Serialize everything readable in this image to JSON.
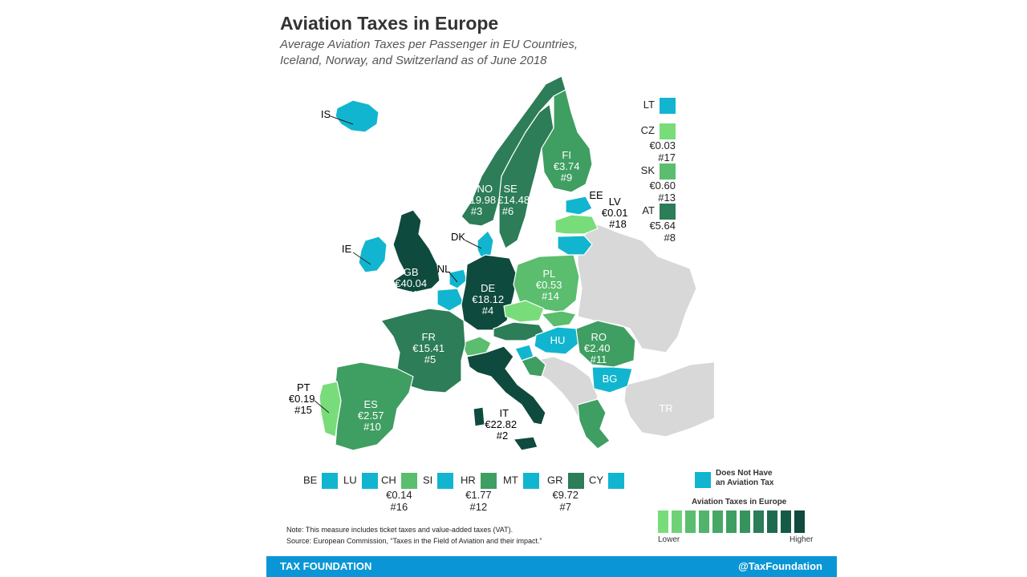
{
  "header": {
    "title": "Aviation Taxes in Europe",
    "subtitle_line1": "Average Aviation Taxes per Passenger in EU Countries,",
    "subtitle_line2": "Iceland, Norway, and Switzerland as of June 2018"
  },
  "colors": {
    "no_tax": "#12b5cf",
    "non_eu": "#d8d8d8",
    "shade_1": "#79dc7b",
    "shade_2": "#5bbd6e",
    "shade_3": "#3f9e62",
    "shade_4": "#2c7d58",
    "shade_5": "#0e4a3d",
    "footer": "#0a96d6"
  },
  "map_labels": [
    {
      "key": "is",
      "code": "IS",
      "value": "",
      "rank": ""
    },
    {
      "key": "ie",
      "code": "IE",
      "value": "",
      "rank": ""
    },
    {
      "key": "gb",
      "code": "GB",
      "value": "€40.04",
      "rank": "#1"
    },
    {
      "key": "nl",
      "code": "NL",
      "value": "",
      "rank": ""
    },
    {
      "key": "dk",
      "code": "DK",
      "value": "",
      "rank": ""
    },
    {
      "key": "no",
      "code": "NO",
      "value": "€19.98",
      "rank": "#3"
    },
    {
      "key": "se",
      "code": "SE",
      "value": "€14.48",
      "rank": "#6"
    },
    {
      "key": "fi",
      "code": "FI",
      "value": "€3.74",
      "rank": "#9"
    },
    {
      "key": "ee",
      "code": "EE",
      "value": "",
      "rank": ""
    },
    {
      "key": "lv",
      "code": "LV",
      "value": "€0.01",
      "rank": "#18"
    },
    {
      "key": "de",
      "code": "DE",
      "value": "€18.12",
      "rank": "#4"
    },
    {
      "key": "pl",
      "code": "PL",
      "value": "€0.53",
      "rank": "#14"
    },
    {
      "key": "fr",
      "code": "FR",
      "value": "€15.41",
      "rank": "#5"
    },
    {
      "key": "hu",
      "code": "HU",
      "value": "",
      "rank": ""
    },
    {
      "key": "ro",
      "code": "RO",
      "value": "€2.40",
      "rank": "#11"
    },
    {
      "key": "bg",
      "code": "BG",
      "value": "",
      "rank": ""
    },
    {
      "key": "pt",
      "code": "PT",
      "value": "€0.19",
      "rank": "#15"
    },
    {
      "key": "es",
      "code": "ES",
      "value": "€2.57",
      "rank": "#10"
    },
    {
      "key": "it",
      "code": "IT",
      "value": "€22.82",
      "rank": "#2"
    },
    {
      "key": "tr",
      "code": "TR",
      "value": "",
      "rank": ""
    }
  ],
  "side_legend": [
    {
      "code": "LT",
      "value": "",
      "rank": ""
    },
    {
      "code": "CZ",
      "value": "€0.03",
      "rank": "#17"
    },
    {
      "code": "SK",
      "value": "€0.60",
      "rank": "#13"
    },
    {
      "code": "AT",
      "value": "€5.64",
      "rank": "#8"
    }
  ],
  "bottom_legend": [
    {
      "code": "BE",
      "value": "",
      "rank": ""
    },
    {
      "code": "LU",
      "value": "",
      "rank": ""
    },
    {
      "code": "CH",
      "value": "€0.14",
      "rank": "#16"
    },
    {
      "code": "SI",
      "value": "",
      "rank": ""
    },
    {
      "code": "HR",
      "value": "€1.77",
      "rank": "#12"
    },
    {
      "code": "MT",
      "value": "",
      "rank": ""
    },
    {
      "code": "GR",
      "value": "€9.72",
      "rank": "#7"
    },
    {
      "code": "CY",
      "value": "",
      "rank": ""
    }
  ],
  "legend": {
    "no_tax_label_line1": "Does Not Have",
    "no_tax_label_line2": "an Aviation Tax",
    "scale_title": "Aviation Taxes in Europe",
    "scale_low": "Lower",
    "scale_high": "Higher",
    "scale_colors": [
      "#79dc7b",
      "#6fd278",
      "#5bbd6e",
      "#52b36c",
      "#47a866",
      "#3f9e62",
      "#36935e",
      "#2c7d58",
      "#1f6a4f",
      "#155a46",
      "#0e4a3d"
    ]
  },
  "note": {
    "line1": "Note: This measure includes ticket taxes and value-added taxes (VAT).",
    "line2": "Source: European Commission, “Taxes in the Field of Aviation and their impact.”"
  },
  "footer": {
    "org": "TAX FOUNDATION",
    "handle": "@TaxFoundation"
  }
}
